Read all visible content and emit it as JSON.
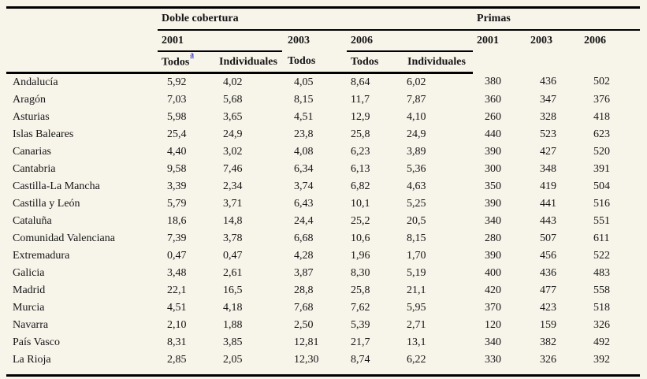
{
  "page": {
    "background": "#f7f4ea",
    "rule_color": "#000000",
    "footnote_link_color": "#3c3cc8"
  },
  "table": {
    "groups": {
      "doble_cobertura": "Doble cobertura",
      "primas": "Primas"
    },
    "year_headers": {
      "dc_2001": "2001",
      "dc_2003": "2003",
      "dc_2006": "2006",
      "pr_2001": "2001",
      "pr_2003": "2003",
      "pr_2006": "2006"
    },
    "sub_headers": {
      "dc2001_todos": "Todos",
      "footnote_marker": "a",
      "dc2001_individuales": "Individuales",
      "dc2003_todos": "Todos",
      "dc2006_todos": "Todos",
      "dc2006_individuales": "Individuales"
    },
    "columns": [
      "region",
      "dc_2001_todos",
      "dc_2001_individuales",
      "dc_2003_todos",
      "dc_2006_todos",
      "dc_2006_individuales",
      "primas_2001",
      "primas_2003",
      "primas_2006"
    ],
    "rows": [
      {
        "region": "Andalucía",
        "values": [
          "5,92",
          "4,02",
          "4,05",
          "8,64",
          "6,02",
          "380",
          "436",
          "502"
        ]
      },
      {
        "region": "Aragón",
        "values": [
          "7,03",
          "5,68",
          "8,15",
          "11,7",
          "7,87",
          "360",
          "347",
          "376"
        ]
      },
      {
        "region": "Asturias",
        "values": [
          "5,98",
          "3,65",
          "4,51",
          "12,9",
          "4,10",
          "260",
          "328",
          "418"
        ]
      },
      {
        "region": "Islas Baleares",
        "values": [
          "25,4",
          "24,9",
          "23,8",
          "25,8",
          "24,9",
          "440",
          "523",
          "623"
        ]
      },
      {
        "region": "Canarias",
        "values": [
          "4,40",
          "3,02",
          "4,08",
          "6,23",
          "3,89",
          "390",
          "427",
          "520"
        ]
      },
      {
        "region": "Cantabria",
        "values": [
          "9,58",
          "7,46",
          "6,34",
          "6,13",
          "5,36",
          "300",
          "348",
          "391"
        ]
      },
      {
        "region": "Castilla-La Mancha",
        "values": [
          "3,39",
          "2,34",
          "3,74",
          "6,82",
          "4,63",
          "350",
          "419",
          "504"
        ]
      },
      {
        "region": "Castilla y León",
        "values": [
          "5,79",
          "3,71",
          "6,43",
          "10,1",
          "5,25",
          "390",
          "441",
          "516"
        ]
      },
      {
        "region": "Cataluña",
        "values": [
          "18,6",
          "14,8",
          "24,4",
          "25,2",
          "20,5",
          "340",
          "443",
          "551"
        ]
      },
      {
        "region": "Comunidad Valenciana",
        "values": [
          "7,39",
          "3,78",
          "6,68",
          "10,6",
          "8,15",
          "280",
          "507",
          "611"
        ]
      },
      {
        "region": "Extremadura",
        "values": [
          "0,47",
          "0,47",
          "4,28",
          "1,96",
          "1,70",
          "390",
          "456",
          "522"
        ]
      },
      {
        "region": "Galicia",
        "values": [
          "3,48",
          "2,61",
          "3,87",
          "8,30",
          "5,19",
          "400",
          "436",
          "483"
        ]
      },
      {
        "region": "Madrid",
        "values": [
          "22,1",
          "16,5",
          "28,8",
          "25,8",
          "21,1",
          "420",
          "477",
          "558"
        ]
      },
      {
        "region": "Murcia",
        "values": [
          "4,51",
          "4,18",
          "7,68",
          "7,62",
          "5,95",
          "370",
          "423",
          "518"
        ]
      },
      {
        "region": "Navarra",
        "values": [
          "2,10",
          "1,88",
          "2,50",
          "5,39",
          "2,71",
          "120",
          "159",
          "326"
        ]
      },
      {
        "region": "País Vasco",
        "values": [
          "8,31",
          "3,85",
          "12,81",
          "21,7",
          "13,1",
          "340",
          "382",
          "492"
        ]
      },
      {
        "region": "La Rioja",
        "values": [
          "2,85",
          "2,05",
          "12,30",
          "8,74",
          "6,22",
          "330",
          "326",
          "392"
        ]
      }
    ]
  }
}
